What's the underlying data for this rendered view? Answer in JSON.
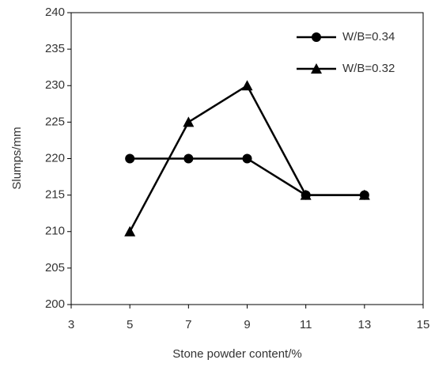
{
  "chart_data": {
    "type": "line",
    "x_label": "Stone powder content/%",
    "y_label": "Slumps/mm",
    "x": [
      5,
      7,
      9,
      11,
      13
    ],
    "series": [
      {
        "name": "W/B=0.34",
        "color": "#000000",
        "marker": "circle",
        "values": [
          220,
          220,
          220,
          215,
          215
        ]
      },
      {
        "name": "W/B=0.32",
        "color": "#000000",
        "marker": "triangle",
        "values": [
          210,
          225,
          230,
          215,
          215
        ]
      }
    ],
    "xlim": [
      3,
      15
    ],
    "xticks": [
      3,
      5,
      7,
      9,
      11,
      13,
      15
    ],
    "ylim": [
      200,
      240
    ],
    "yticks": [
      200,
      205,
      210,
      215,
      220,
      225,
      230,
      235,
      240
    ],
    "grid": false,
    "legend": "upper right"
  }
}
